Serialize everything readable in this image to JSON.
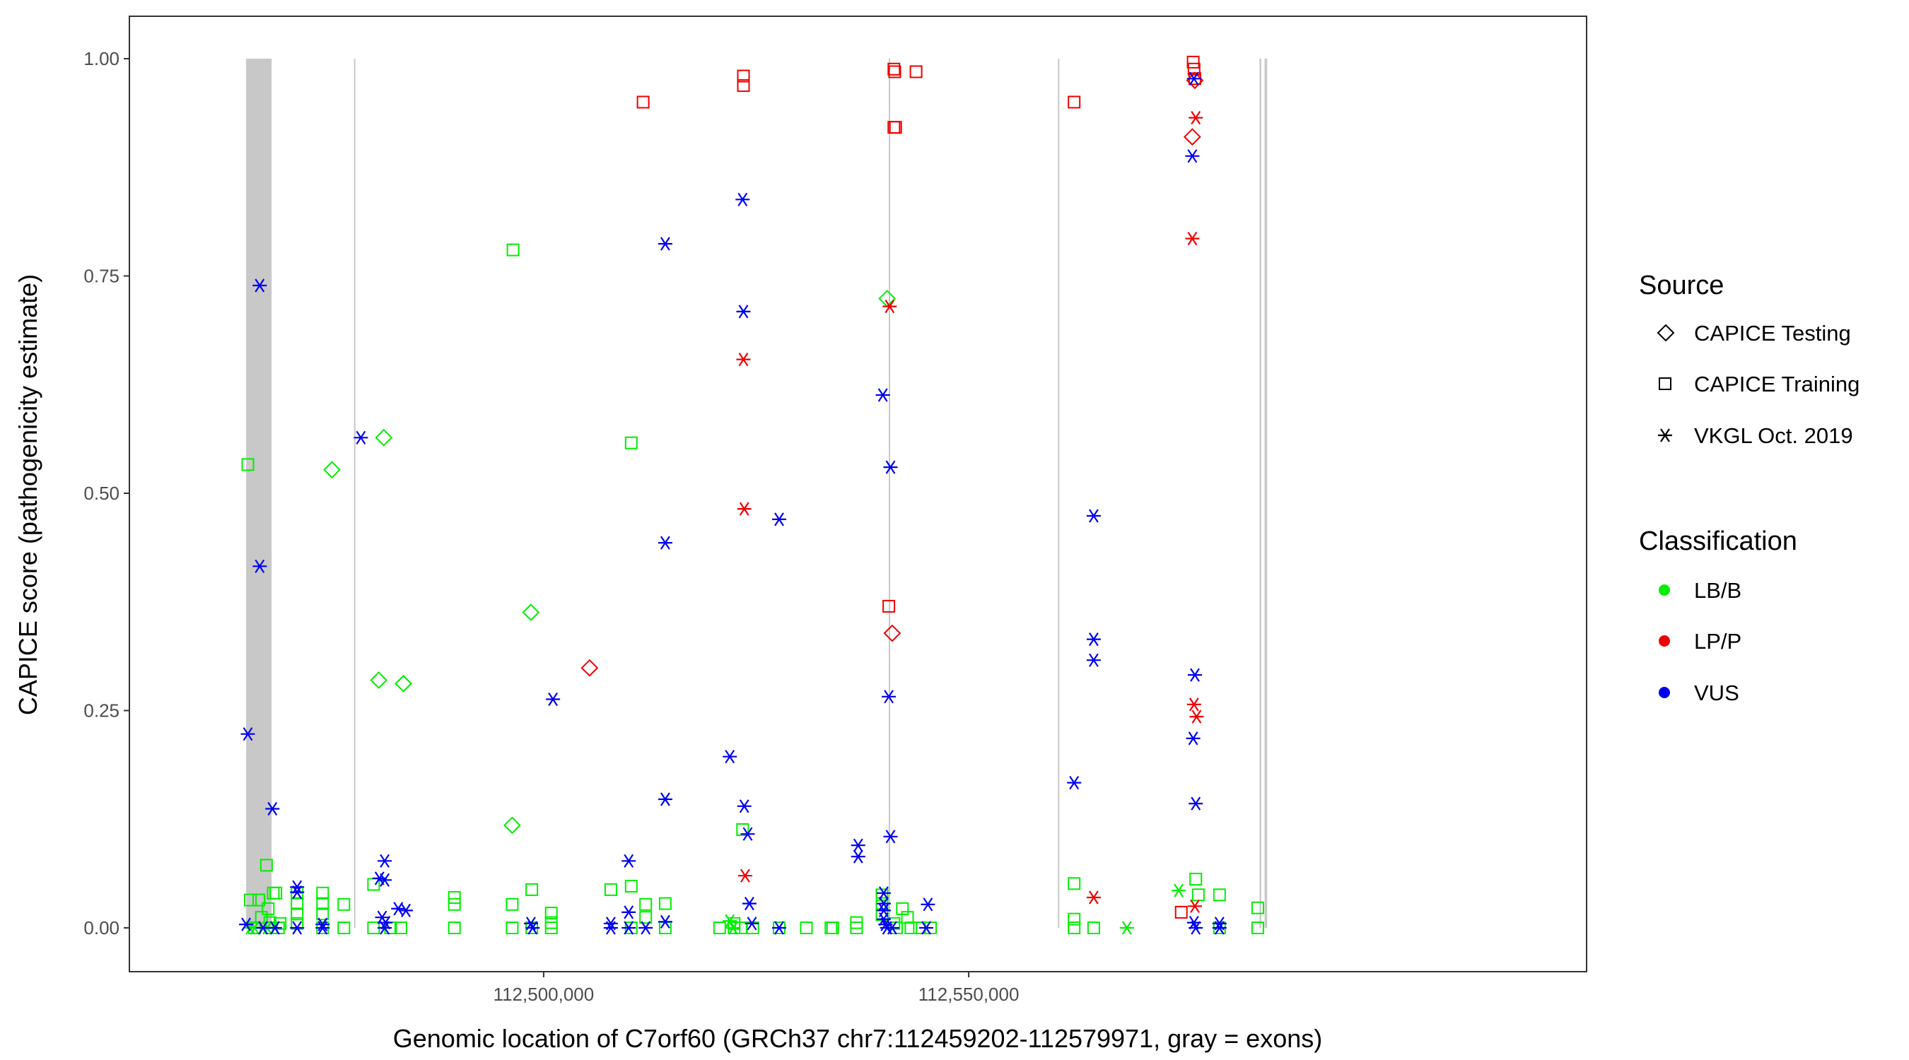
{
  "chart_data": {
    "type": "scatter",
    "xlabel": "Genomic location of C7orf60 (GRCh37 chr7:112459202-112579971, gray = exons)",
    "ylabel": "CAPICE score (pathogenicity estimate)",
    "xlim": [
      112459202,
      112579971
    ],
    "ylim": [
      -0.045,
      1.045
    ],
    "x_ticks": [
      112500000,
      112550000
    ],
    "x_tick_labels": [
      "112,500,000",
      "112,550,000"
    ],
    "y_ticks": [
      0,
      0.25,
      0.5,
      0.75,
      1.0
    ],
    "y_tick_labels": [
      "0.00",
      "0.25",
      "0.50",
      "0.75",
      "1.00"
    ],
    "grid": false,
    "legend_placement": "right",
    "exons": [
      [
        112465000,
        112468000
      ],
      [
        112477700,
        112477850
      ],
      [
        112540600,
        112540750
      ],
      [
        112560500,
        112560650
      ],
      [
        112584200,
        112584400
      ],
      [
        112584800,
        112585100
      ]
    ],
    "legend": {
      "source_title": "Source",
      "sources": [
        {
          "name": "CAPICE Testing",
          "shape": "diamond"
        },
        {
          "name": "CAPICE Training",
          "shape": "square"
        },
        {
          "name": "VKGL Oct. 2019",
          "shape": "asterisk"
        }
      ],
      "class_title": "Classification",
      "classes": [
        {
          "name": "LB/B",
          "color": "#00ee00"
        },
        {
          "name": "LP/P",
          "color": "#ee0000"
        },
        {
          "name": "VUS",
          "color": "#0000ee"
        }
      ]
    },
    "series": [
      {
        "source": "CAPICE Training",
        "classification": "LB/B",
        "points": [
          [
            112465200,
            0.533
          ],
          [
            112465500,
            0.032
          ],
          [
            112466500,
            0.032
          ],
          [
            112466800,
            0.012
          ],
          [
            112467400,
            0.072
          ],
          [
            112467600,
            0.022
          ],
          [
            112467800,
            0.006
          ],
          [
            112468200,
            0.04
          ],
          [
            112468500,
            0.04
          ],
          [
            112468000,
            0.0
          ],
          [
            112469000,
            0.005
          ],
          [
            112468800,
            0.0
          ],
          [
            112466000,
            0.0
          ],
          [
            112471000,
            0.04
          ],
          [
            112471000,
            0.028
          ],
          [
            112471000,
            0.016
          ],
          [
            112471000,
            0.005
          ],
          [
            112474000,
            0.04
          ],
          [
            112474000,
            0.028
          ],
          [
            112474000,
            0.016
          ],
          [
            112474000,
            0.0
          ],
          [
            112476500,
            0.027
          ],
          [
            112476500,
            0.0
          ],
          [
            112480000,
            0.05
          ],
          [
            112480000,
            0.0
          ],
          [
            112482000,
            0.0
          ],
          [
            112483200,
            0.0
          ],
          [
            112489500,
            0.035
          ],
          [
            112489500,
            0.027
          ],
          [
            112489500,
            0.0
          ],
          [
            112496400,
            0.78
          ],
          [
            112496300,
            0.027
          ],
          [
            112496300,
            0.0
          ],
          [
            112498600,
            0.044
          ],
          [
            112498600,
            0.0
          ],
          [
            112500900,
            0.017
          ],
          [
            112500900,
            0.006
          ],
          [
            112500900,
            0.0
          ],
          [
            112507900,
            0.044
          ],
          [
            112510300,
            0.558
          ],
          [
            112510300,
            0.048
          ],
          [
            112510300,
            0.0
          ],
          [
            112512000,
            0.027
          ],
          [
            112512000,
            0.012
          ],
          [
            112514300,
            0.028
          ],
          [
            112514300,
            0.0
          ],
          [
            112520700,
            0.0
          ],
          [
            112522400,
            0.005
          ],
          [
            112522400,
            0.0
          ],
          [
            112523400,
            0.113
          ],
          [
            112523200,
            0.0
          ],
          [
            112524600,
            0.0
          ],
          [
            112527700,
            0.0
          ],
          [
            112530900,
            0.0
          ],
          [
            112533800,
            0.0
          ],
          [
            112534000,
            0.0
          ],
          [
            112536800,
            0.0
          ],
          [
            112536800,
            0.006
          ],
          [
            112539800,
            0.038
          ],
          [
            112539800,
            0.028
          ],
          [
            112539800,
            0.015
          ],
          [
            112541200,
            0.005
          ],
          [
            112541500,
            0.0
          ],
          [
            112542200,
            0.022
          ],
          [
            112542800,
            0.012
          ],
          [
            112543200,
            0.0
          ],
          [
            112544200,
            0.0
          ],
          [
            112545500,
            0.0
          ],
          [
            112562400,
            0.051
          ],
          [
            112562400,
            0.01
          ],
          [
            112562400,
            0.0
          ],
          [
            112564700,
            0.0
          ],
          [
            112576700,
            0.056
          ],
          [
            112577000,
            0.038
          ],
          [
            112579500,
            0.038
          ],
          [
            112579500,
            0.0
          ],
          [
            112584000,
            0.023
          ],
          [
            112584000,
            0.0
          ]
        ]
      },
      {
        "source": "CAPICE Training",
        "classification": "LP/P",
        "points": [
          [
            112511700,
            0.95
          ],
          [
            112523500,
            0.98
          ],
          [
            112523500,
            0.969
          ],
          [
            112540600,
            0.37
          ],
          [
            112541200,
            0.988
          ],
          [
            112541300,
            0.985
          ],
          [
            112541200,
            0.921
          ],
          [
            112541400,
            0.921
          ],
          [
            112543800,
            0.985
          ],
          [
            112562400,
            0.95
          ],
          [
            112576400,
            0.996
          ],
          [
            112576500,
            0.988
          ],
          [
            112576600,
            0.977
          ],
          [
            112575000,
            0.018
          ]
        ]
      },
      {
        "source": "CAPICE Testing",
        "classification": "LB/B",
        "points": [
          [
            112475100,
            0.527
          ],
          [
            112480600,
            0.285
          ],
          [
            112481200,
            0.564
          ],
          [
            112483500,
            0.281
          ],
          [
            112496300,
            0.118
          ],
          [
            112498500,
            0.363
          ],
          [
            112540400,
            0.724
          ]
        ]
      },
      {
        "source": "CAPICE Testing",
        "classification": "LP/P",
        "points": [
          [
            112505400,
            0.299
          ],
          [
            112541000,
            0.339
          ],
          [
            112576300,
            0.91
          ],
          [
            112576600,
            0.975
          ]
        ]
      },
      {
        "source": "VKGL Oct. 2019",
        "classification": "LB/B",
        "points": [
          [
            112465500,
            0.0
          ],
          [
            112466000,
            0.0
          ],
          [
            112467500,
            0.0
          ],
          [
            112521900,
            0.008
          ],
          [
            112522300,
            0.0
          ],
          [
            112568600,
            0.0
          ],
          [
            112574700,
            0.043
          ]
        ]
      },
      {
        "source": "VKGL Oct. 2019",
        "classification": "LP/P",
        "points": [
          [
            112523500,
            0.654
          ],
          [
            112523600,
            0.482
          ],
          [
            112523700,
            0.06
          ],
          [
            112540700,
            0.715
          ],
          [
            112564700,
            0.035
          ],
          [
            112576300,
            0.793
          ],
          [
            112576500,
            0.257
          ],
          [
            112576700,
            0.932
          ],
          [
            112576800,
            0.243
          ],
          [
            112576600,
            0.025
          ]
        ]
      },
      {
        "source": "VKGL Oct. 2019",
        "classification": "VUS",
        "points": [
          [
            112465200,
            0.223
          ],
          [
            112466600,
            0.739
          ],
          [
            112466600,
            0.416
          ],
          [
            112468100,
            0.137
          ],
          [
            112465000,
            0.004
          ],
          [
            112467000,
            0.0
          ],
          [
            112468400,
            0.0
          ],
          [
            112471000,
            0.047
          ],
          [
            112471000,
            0.041
          ],
          [
            112471000,
            0.0
          ],
          [
            112474000,
            0.004
          ],
          [
            112474000,
            0.0
          ],
          [
            112478500,
            0.564
          ],
          [
            112480700,
            0.057
          ],
          [
            112481300,
            0.077
          ],
          [
            112481300,
            0.055
          ],
          [
            112481000,
            0.012
          ],
          [
            112481400,
            0.006
          ],
          [
            112481300,
            0.0
          ],
          [
            112482900,
            0.022
          ],
          [
            112483800,
            0.02
          ],
          [
            112498500,
            0.005
          ],
          [
            112498700,
            0.0
          ],
          [
            112501100,
            0.263
          ],
          [
            112507900,
            0.005
          ],
          [
            112507900,
            0.0
          ],
          [
            112510000,
            0.077
          ],
          [
            112510000,
            0.018
          ],
          [
            112510000,
            0.0
          ],
          [
            112512000,
            0.0
          ],
          [
            112514300,
            0.787
          ],
          [
            112514300,
            0.443
          ],
          [
            112514300,
            0.148
          ],
          [
            112514300,
            0.007
          ],
          [
            112521900,
            0.197
          ],
          [
            112523400,
            0.838
          ],
          [
            112523500,
            0.709
          ],
          [
            112523600,
            0.14
          ],
          [
            112524000,
            0.108
          ],
          [
            112524200,
            0.028
          ],
          [
            112524500,
            0.005
          ],
          [
            112527700,
            0.47
          ],
          [
            112527700,
            0.0
          ],
          [
            112537000,
            0.095
          ],
          [
            112537000,
            0.082
          ],
          [
            112539900,
            0.613
          ],
          [
            112540800,
            0.53
          ],
          [
            112540600,
            0.266
          ],
          [
            112540800,
            0.105
          ],
          [
            112540000,
            0.04
          ],
          [
            112540000,
            0.028
          ],
          [
            112540000,
            0.02
          ],
          [
            112540000,
            0.01
          ],
          [
            112540200,
            0.004
          ],
          [
            112540400,
            0.0
          ],
          [
            112541000,
            0.0
          ],
          [
            112545200,
            0.027
          ],
          [
            112545000,
            0.0
          ],
          [
            112562400,
            0.167
          ],
          [
            112564700,
            0.474
          ],
          [
            112564700,
            0.332
          ],
          [
            112564700,
            0.308
          ],
          [
            112576500,
            0.977
          ],
          [
            112576300,
            0.888
          ],
          [
            112576600,
            0.291
          ],
          [
            112576400,
            0.218
          ],
          [
            112576700,
            0.143
          ],
          [
            112576500,
            0.006
          ],
          [
            112576700,
            0.0
          ],
          [
            112579500,
            0.005
          ],
          [
            112579500,
            0.0
          ]
        ]
      }
    ]
  }
}
